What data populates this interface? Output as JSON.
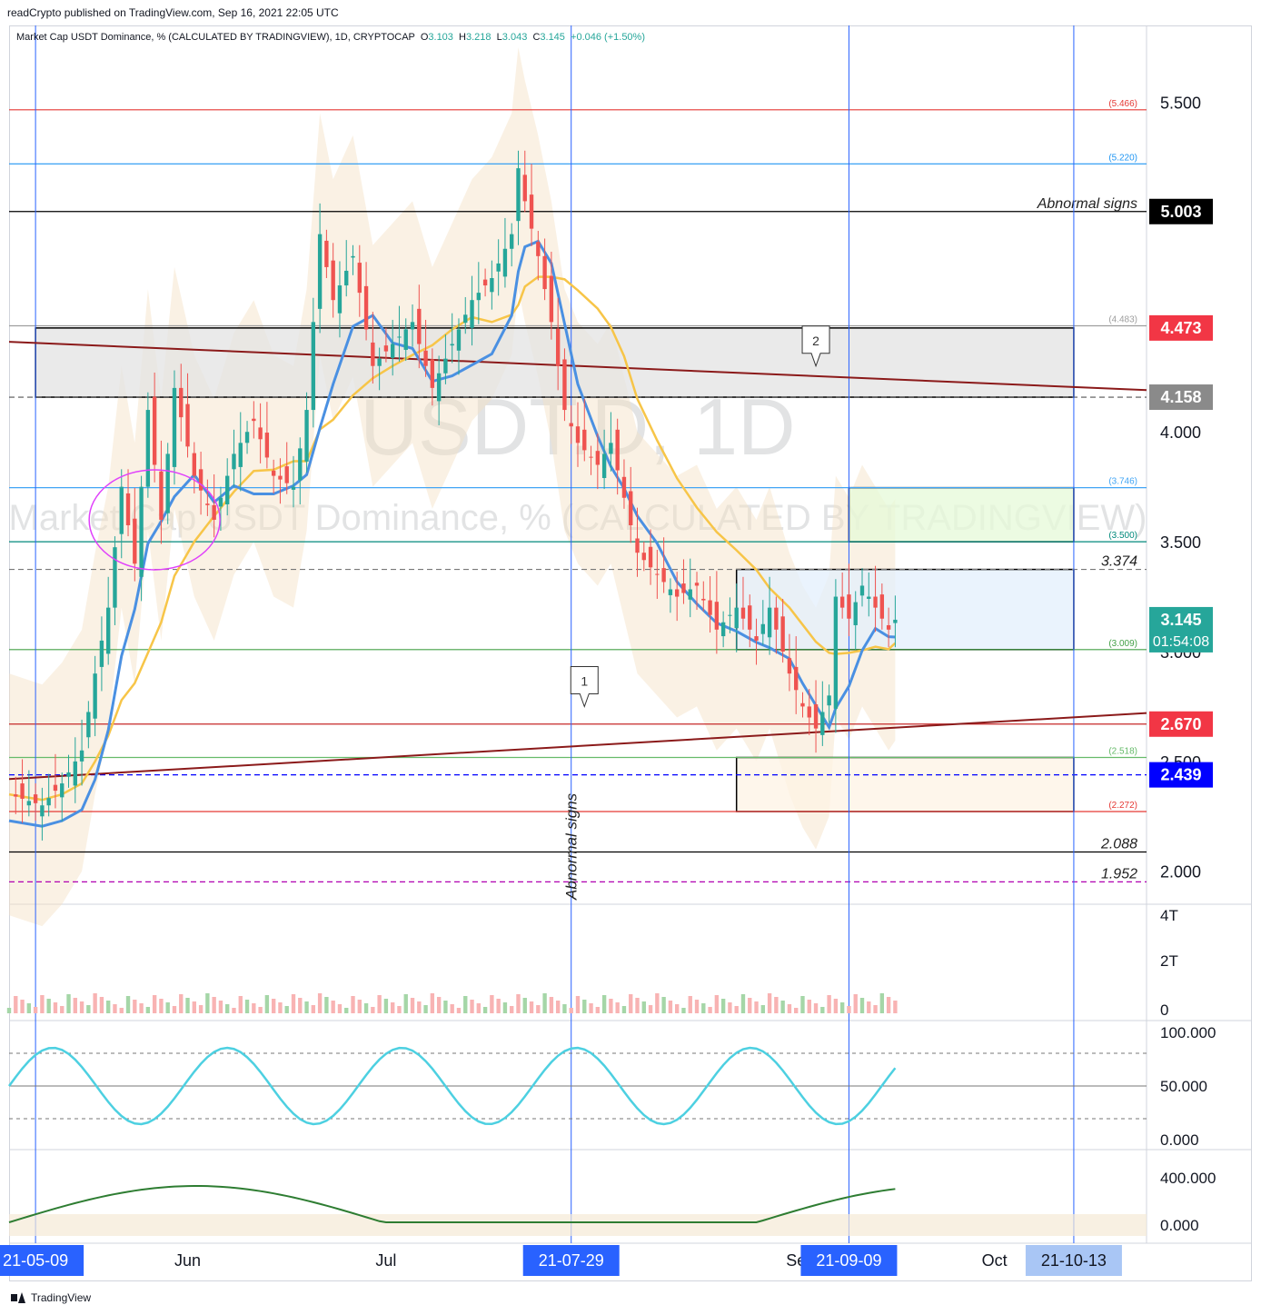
{
  "publisher": "readCrypto published on TradingView.com, Sep 16, 2021 22:05 UTC",
  "legend": {
    "title": "Market Cap USDT Dominance, % (CALCULATED BY TRADINGVIEW), 1D, CRYPTOCAP",
    "o_label": "O",
    "o_value": "3.103",
    "h_label": "H",
    "h_value": "3.218",
    "l_label": "L",
    "l_value": "3.043",
    "c_label": "C",
    "c_value": "3.145",
    "change": "+0.046 (+1.50%)"
  },
  "watermark": {
    "symbol": "USDT.D, 1D",
    "description": "Market Cap USDT Dominance, % (CALCULATED BY TRADINGVIEW)"
  },
  "footer": {
    "brand": "TradingView"
  },
  "colors": {
    "up": "#26a69a",
    "down": "#ef5350",
    "up_light": "#a5d6a7",
    "down_light": "#f8b3b3",
    "blue": "#4a90e2",
    "yellow": "#f7c548",
    "darkred": "#8b1a1a",
    "red": "#e53935",
    "teal": "#26a69a",
    "green": "#43a047",
    "magenta": "#e040fb",
    "navy": "#0000ff",
    "grid": "#eef0f3"
  },
  "chart_data": {
    "type": "candlestick",
    "symbol": "USDT.D",
    "timeframe": "1D",
    "price_axis": {
      "min": 1.85,
      "max": 5.85,
      "ticks": [
        "5.500",
        "5.000",
        "4.000",
        "3.500",
        "3.000",
        "2.500",
        "2.000"
      ],
      "tick_values": [
        5.5,
        5.0,
        4.0,
        3.5,
        3.0,
        2.5,
        2.0
      ]
    },
    "time_axis": {
      "start": "2021-05-05",
      "end": "2021-10-24",
      "month_labels": [
        {
          "label": "Jun",
          "date": "2021-06-01"
        },
        {
          "label": "Jul",
          "date": "2021-07-01"
        },
        {
          "label": "Se",
          "date": "2021-09-01"
        },
        {
          "label": "Oct",
          "date": "2021-10-01"
        }
      ],
      "date_badges": [
        {
          "label": "21-05-09",
          "date": "2021-05-09"
        },
        {
          "label": "21-07-29",
          "date": "2021-07-29"
        },
        {
          "label": "21-09-09",
          "date": "2021-09-09"
        },
        {
          "label": "21-10-13",
          "date": "2021-10-13"
        }
      ]
    },
    "vertical_lines": [
      "2021-05-09",
      "2021-07-29",
      "2021-09-09",
      "2021-10-13"
    ],
    "close_path": [
      [
        "2021-05-05",
        2.35
      ],
      [
        "2021-05-10",
        2.3
      ],
      [
        "2021-05-13",
        2.4
      ],
      [
        "2021-05-16",
        2.55
      ],
      [
        "2021-05-18",
        2.9
      ],
      [
        "2021-05-20",
        3.2
      ],
      [
        "2021-05-22",
        3.75
      ],
      [
        "2021-05-24",
        3.4
      ],
      [
        "2021-05-26",
        4.1
      ],
      [
        "2021-05-28",
        3.6
      ],
      [
        "2021-05-30",
        4.2
      ],
      [
        "2021-06-02",
        3.8
      ],
      [
        "2021-06-05",
        3.6
      ],
      [
        "2021-06-08",
        3.9
      ],
      [
        "2021-06-11",
        4.05
      ],
      [
        "2021-06-14",
        3.8
      ],
      [
        "2021-06-17",
        3.75
      ],
      [
        "2021-06-19",
        4.1
      ],
      [
        "2021-06-21",
        4.9
      ],
      [
        "2021-06-23",
        4.6
      ],
      [
        "2021-06-26",
        4.8
      ],
      [
        "2021-06-29",
        4.3
      ],
      [
        "2021-07-02",
        4.4
      ],
      [
        "2021-07-05",
        4.5
      ],
      [
        "2021-07-08",
        4.2
      ],
      [
        "2021-07-11",
        4.4
      ],
      [
        "2021-07-14",
        4.6
      ],
      [
        "2021-07-17",
        4.7
      ],
      [
        "2021-07-20",
        4.9
      ],
      [
        "2021-07-21",
        5.2
      ],
      [
        "2021-07-22",
        5.05
      ],
      [
        "2021-07-24",
        4.8
      ],
      [
        "2021-07-26",
        4.5
      ],
      [
        "2021-07-28",
        4.1
      ],
      [
        "2021-07-30",
        3.95
      ],
      [
        "2021-08-02",
        3.85
      ],
      [
        "2021-08-04",
        3.95
      ],
      [
        "2021-08-06",
        3.7
      ],
      [
        "2021-08-08",
        3.45
      ],
      [
        "2021-08-11",
        3.35
      ],
      [
        "2021-08-14",
        3.25
      ],
      [
        "2021-08-17",
        3.3
      ],
      [
        "2021-08-20",
        3.1
      ],
      [
        "2021-08-23",
        3.2
      ],
      [
        "2021-08-26",
        3.05
      ],
      [
        "2021-08-28",
        3.2
      ],
      [
        "2021-08-31",
        2.9
      ],
      [
        "2021-09-02",
        2.75
      ],
      [
        "2021-09-04",
        2.65
      ],
      [
        "2021-09-06",
        2.8
      ],
      [
        "2021-09-07",
        3.25
      ],
      [
        "2021-09-09",
        3.15
      ],
      [
        "2021-09-11",
        3.3
      ],
      [
        "2021-09-13",
        3.2
      ],
      [
        "2021-09-15",
        3.1
      ],
      [
        "2021-09-16",
        3.145
      ]
    ],
    "last_candle": {
      "date": "2021-09-16",
      "open": 3.103,
      "high": 3.218,
      "low": 3.043,
      "close": 3.145
    },
    "horizontal_levels": [
      {
        "value": 5.466,
        "label": "(5.466)",
        "color": "#e53935"
      },
      {
        "value": 5.22,
        "label": "(5.220)",
        "color": "#2196f3"
      },
      {
        "value": 5.003,
        "label": "Abnormal signs",
        "color": "#000000"
      },
      {
        "value": 4.483,
        "label": "(4.483)",
        "color": "#9e9e9e"
      },
      {
        "value": 4.158,
        "label": "",
        "color": "#555555"
      },
      {
        "value": 3.746,
        "label": "(3.746)",
        "color": "#42a5f5"
      },
      {
        "value": 3.5,
        "label": "(3.500)",
        "color": "#00897b"
      },
      {
        "value": 3.374,
        "label": "3.374",
        "color": "#777777"
      },
      {
        "value": 3.009,
        "label": "(3.009)",
        "color": "#43a047"
      },
      {
        "value": 2.67,
        "label": "",
        "color": "#c62828"
      },
      {
        "value": 2.518,
        "label": "(2.518)",
        "color": "#66bb6a"
      },
      {
        "value": 2.439,
        "label": "",
        "color": "#0000ff"
      },
      {
        "value": 2.272,
        "label": "(2.272)",
        "color": "#e53935"
      },
      {
        "value": 2.088,
        "label": "2.088",
        "color": "#000000"
      },
      {
        "value": 1.952,
        "label": "1.952",
        "color": "#b000b0"
      }
    ],
    "price_badges": [
      {
        "value": 5.003,
        "label": "5.003",
        "bg": "#000000"
      },
      {
        "value": 4.473,
        "label": "4.473",
        "bg": "#f23645"
      },
      {
        "value": 4.158,
        "label": "4.158",
        "bg": "#8a8a8a"
      },
      {
        "value": 3.145,
        "label": "3.145",
        "label2": "01:54:08",
        "bg": "#26a69a"
      },
      {
        "value": 2.67,
        "label": "2.670",
        "bg": "#f23645"
      },
      {
        "value": 2.439,
        "label": "2.439",
        "bg": "#0000ff"
      }
    ],
    "boxes": [
      {
        "from": "2021-05-09",
        "to": "2021-10-13",
        "top": 4.473,
        "bottom": 4.158,
        "fill": "#e3e3e3"
      },
      {
        "from": "2021-09-09",
        "to": "2021-10-13",
        "top": 3.746,
        "bottom": 3.5,
        "fill": "#e6f9d8"
      },
      {
        "from": "2021-08-23",
        "to": "2021-10-13",
        "top": 3.374,
        "bottom": 3.009,
        "fill": "#e3effc"
      },
      {
        "from": "2021-08-23",
        "to": "2021-10-13",
        "top": 2.518,
        "bottom": 2.272,
        "fill": "#fdf3e4"
      }
    ],
    "trend_lines": [
      {
        "from": [
          "2021-05-05",
          4.41
        ],
        "to": [
          "2021-10-24",
          4.19
        ],
        "color": "#8b1a1a"
      },
      {
        "from": [
          "2021-05-05",
          2.42
        ],
        "to": [
          "2021-10-24",
          2.72
        ],
        "color": "#8b1a1a"
      }
    ],
    "callouts": [
      {
        "label": "1",
        "date": "2021-07-31",
        "value": 2.7
      },
      {
        "label": "2",
        "date": "2021-09-04",
        "value": 4.25
      }
    ],
    "rotated_annotation": {
      "text": "Abnormal signs",
      "date": "2021-07-29"
    },
    "volume_panel": {
      "ticks": [
        "4T",
        "2T",
        "0"
      ]
    },
    "oscillator_panel": {
      "ticks": [
        "100.000",
        "50.000",
        "0.000"
      ],
      "levels": [
        80,
        50,
        20
      ]
    },
    "lower_panel": {
      "ticks": [
        "400.000",
        "0.000"
      ]
    }
  }
}
